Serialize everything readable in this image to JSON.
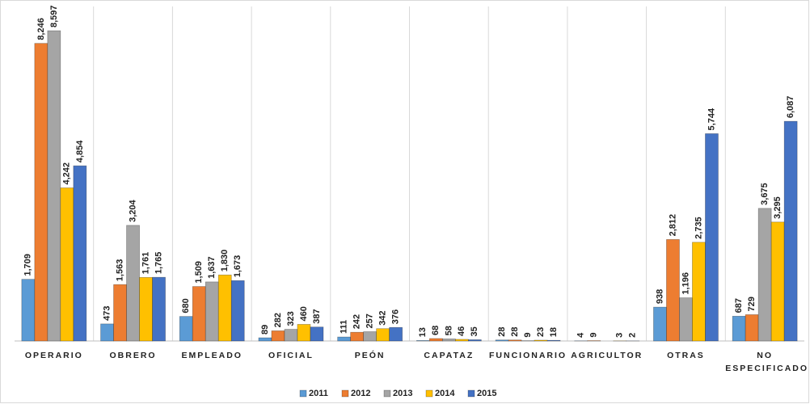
{
  "chart_data": {
    "type": "bar",
    "categories": [
      "OPERARIO",
      "OBRERO",
      "EMPLEADO",
      "OFICIAL",
      "PEÓN",
      "CAPATAZ",
      "FUNCIONARIO",
      "AGRICULTOR",
      "OTRAS",
      "NO ESPECIFICADO"
    ],
    "series": [
      {
        "name": "2011",
        "color": "#5b9bd5",
        "values": [
          1709,
          473,
          680,
          89,
          111,
          13,
          28,
          4,
          938,
          687
        ],
        "value_labels": [
          "1,709",
          "473",
          "680",
          "89",
          "111",
          "13",
          "28",
          "4",
          "938",
          "687"
        ]
      },
      {
        "name": "2012",
        "color": "#ed7d31",
        "values": [
          8246,
          1563,
          1509,
          282,
          242,
          68,
          28,
          9,
          2812,
          729
        ],
        "value_labels": [
          "8,246",
          "1,563",
          "1,509",
          "282",
          "242",
          "68",
          "28",
          "9",
          "2,812",
          "729"
        ]
      },
      {
        "name": "2013",
        "color": "#a5a5a5",
        "values": [
          8597,
          3204,
          1637,
          323,
          257,
          58,
          9,
          null,
          1196,
          3675
        ],
        "value_labels": [
          "8,597",
          "3,204",
          "1,637",
          "323",
          "257",
          "58",
          "9",
          null,
          "1,196",
          "3,675"
        ]
      },
      {
        "name": "2014",
        "color": "#ffc000",
        "values": [
          4242,
          1761,
          1830,
          460,
          342,
          46,
          23,
          3,
          2735,
          3295
        ],
        "value_labels": [
          "4,242",
          "1,761",
          "1,830",
          "460",
          "342",
          "46",
          "23",
          "3",
          "2,735",
          "3,295"
        ]
      },
      {
        "name": "2015",
        "color": "#4472c4",
        "values": [
          4854,
          1765,
          1673,
          387,
          376,
          35,
          18,
          2,
          5744,
          6087
        ],
        "value_labels": [
          "4,854",
          "1,765",
          "1,673",
          "387",
          "376",
          "35",
          "18",
          "2",
          "5,744",
          "6,087"
        ]
      }
    ],
    "legend": "bottom"
  }
}
